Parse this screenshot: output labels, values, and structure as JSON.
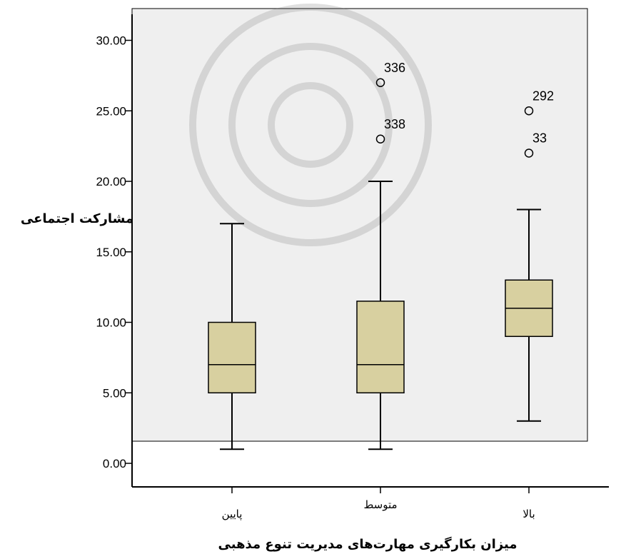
{
  "chart_data": {
    "type": "boxplot",
    "xlabel": "میزان بکارگیری مهارت‌های مدیریت تنوع مذهبی",
    "ylabel": "مشارکت اجتماعی",
    "ylim": [
      0,
      32
    ],
    "yticks": [
      0,
      5,
      10,
      15,
      20,
      25,
      30
    ],
    "ytick_labels": [
      "0.00",
      "5.00",
      "10.00",
      "15.00",
      "20.00",
      "25.00",
      "30.00"
    ],
    "categories": [
      "پایین",
      "متوسط",
      "بالا"
    ],
    "boxes": [
      {
        "category": "پایین",
        "min": 1,
        "q1": 5,
        "median": 7,
        "q3": 10,
        "max": 17,
        "outliers": []
      },
      {
        "category": "متوسط",
        "min": 1,
        "q1": 5,
        "median": 7,
        "q3": 11.5,
        "max": 20,
        "outliers": [
          {
            "value": 27,
            "label": "336"
          },
          {
            "value": 23,
            "label": "338"
          }
        ]
      },
      {
        "category": "بالا",
        "min": 3,
        "q1": 9,
        "median": 11,
        "q3": 13,
        "max": 18,
        "outliers": [
          {
            "value": 25,
            "label": "292"
          },
          {
            "value": 22,
            "label": "33"
          }
        ]
      }
    ],
    "colors": {
      "box_fill": "#d8d0a0",
      "plot_bg": "#efefef",
      "stroke": "#000000"
    },
    "grid": false
  }
}
